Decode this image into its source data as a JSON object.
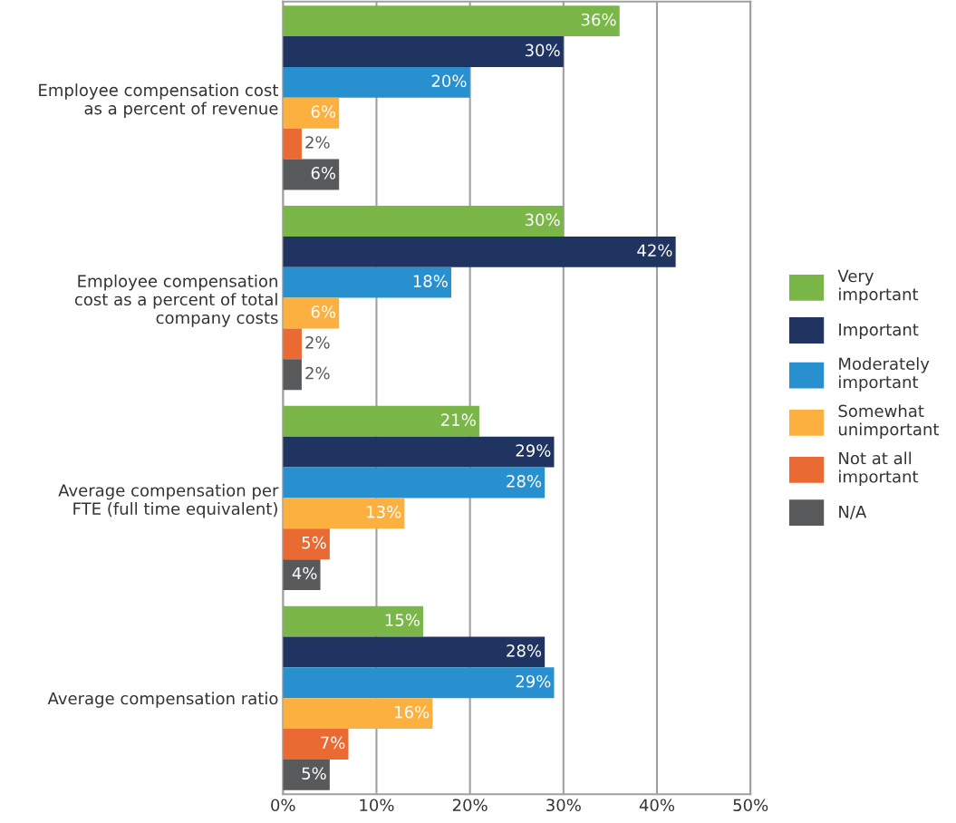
{
  "chart_data": {
    "type": "bar",
    "orientation": "horizontal",
    "categories": [
      "Employee compensation cost\nas a percent of revenue",
      "Employee compensation\ncost as a percent of total\ncompany costs",
      "Average compensation per\nFTE (full time equivalent)",
      "Average compensation ratio"
    ],
    "series": [
      {
        "name": "Very\nimportant",
        "color": "#7ab648",
        "values": [
          36,
          30,
          21,
          15
        ],
        "value_labels": [
          "36%",
          "30%",
          "21%",
          "15%"
        ]
      },
      {
        "name": "Important",
        "color": "#1f3461",
        "values": [
          30,
          42,
          29,
          28
        ],
        "value_labels": [
          "30%",
          "42%",
          "29%",
          "28%"
        ]
      },
      {
        "name": "Moderately\nimportant",
        "color": "#2990d0",
        "values": [
          20,
          18,
          28,
          29
        ],
        "value_labels": [
          "20%",
          "18%",
          "28%",
          "29%"
        ]
      },
      {
        "name": "Somewhat\nunimportant",
        "color": "#fbb040",
        "values": [
          6,
          6,
          13,
          16
        ],
        "value_labels": [
          "6%",
          "6%",
          "13%",
          "16%"
        ]
      },
      {
        "name": "Not at all\nimportant",
        "color": "#ea6a33",
        "values": [
          2,
          2,
          5,
          7
        ],
        "value_labels": [
          "2%",
          "2%",
          "5%",
          "7%"
        ]
      },
      {
        "name": "N/A",
        "color": "#58595b",
        "values": [
          6,
          2,
          4,
          5
        ],
        "value_labels": [
          "6%",
          "2%",
          "4%",
          "5%"
        ]
      }
    ],
    "xlim": [
      0,
      50
    ],
    "xticks": [
      {
        "value": 0,
        "label": "0%"
      },
      {
        "value": 10,
        "label": "10%"
      },
      {
        "value": 20,
        "label": "20%"
      },
      {
        "value": 30,
        "label": "30%"
      },
      {
        "value": 40,
        "label": "40%"
      },
      {
        "value": 50,
        "label": "50%"
      }
    ],
    "grid": "x",
    "legend": "right"
  }
}
